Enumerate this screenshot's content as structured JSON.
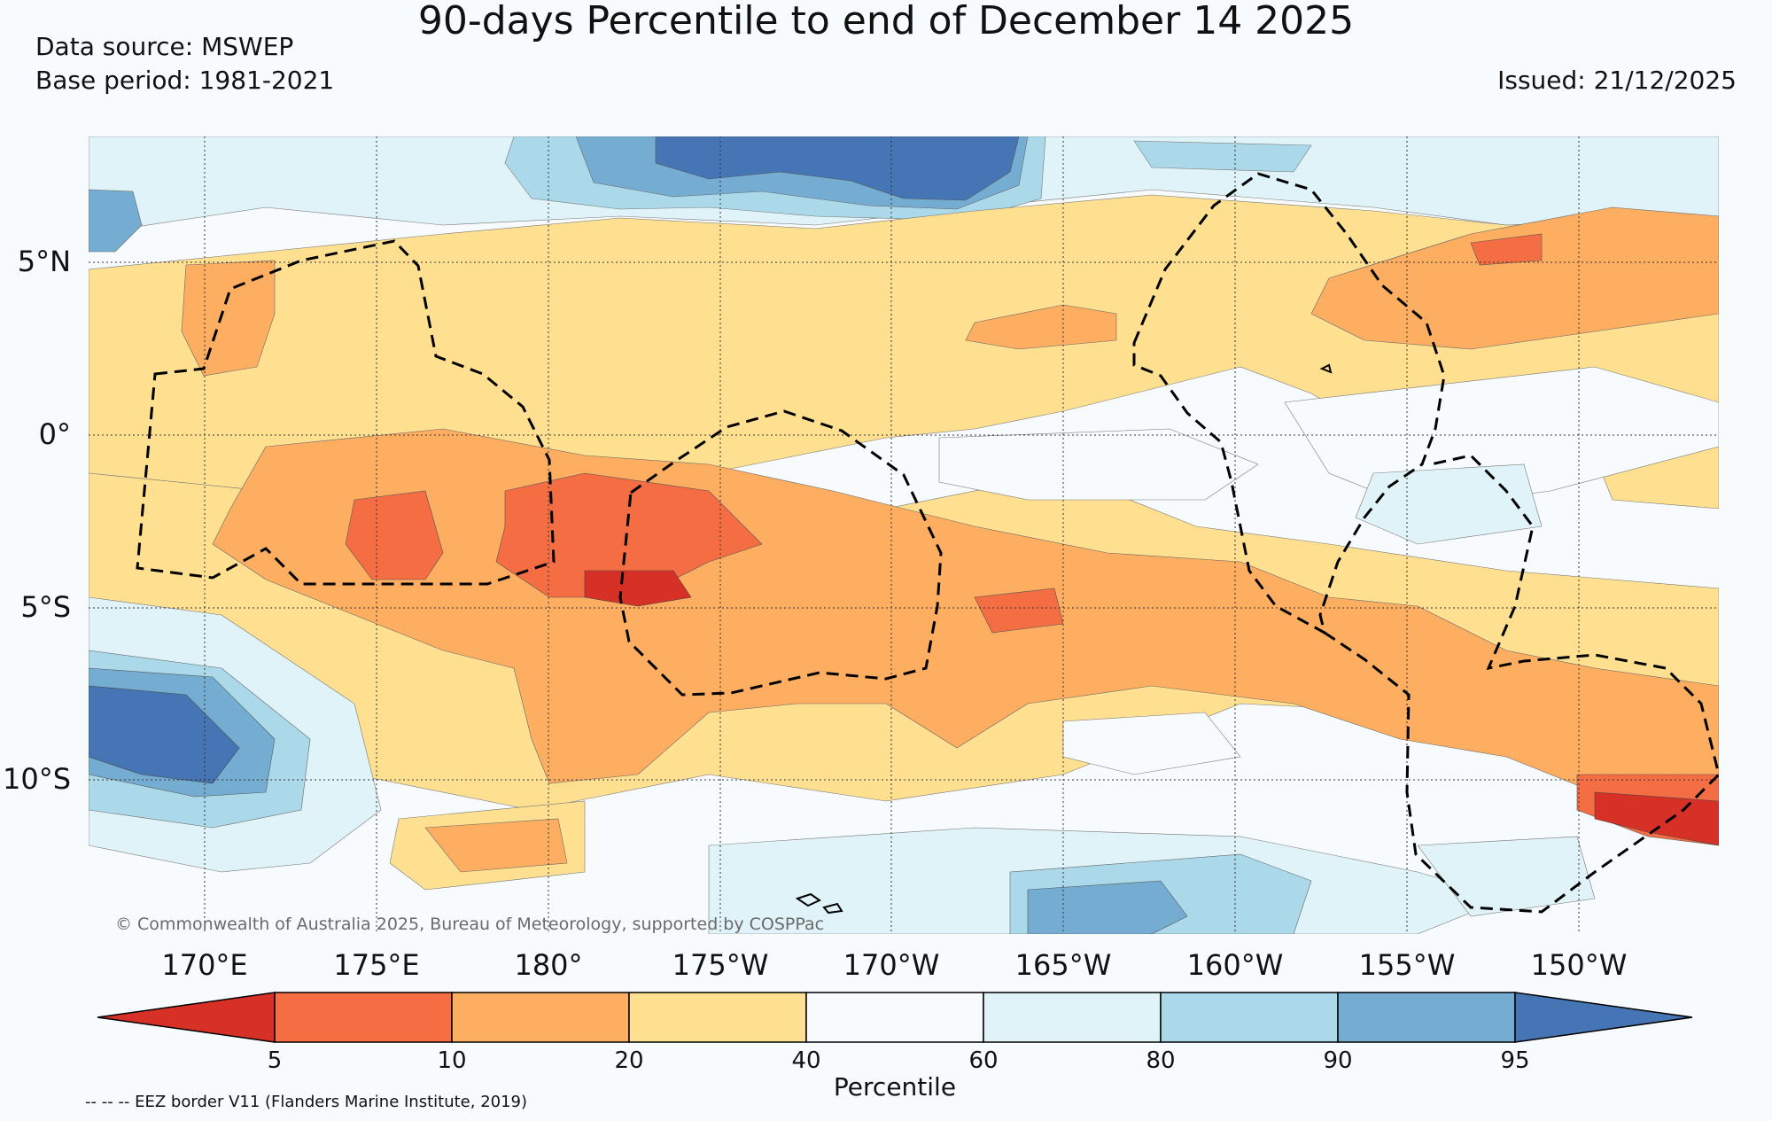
{
  "title": "90-days Percentile to end of December 14 2025",
  "data_source": "Data source: MSWEP",
  "base_period": "Base period: 1981-2021",
  "issued": "Issued: 21/12/2025",
  "copyright": "© Commonwealth of Australia 2025, Bureau of Meteorology, supported by COSPPac",
  "lat_labels": [
    "5°N",
    "0°",
    "5°S",
    "10°S"
  ],
  "lon_labels": [
    "170°E",
    "175°E",
    "180°",
    "175°W",
    "170°W",
    "165°W",
    "160°W",
    "155°W",
    "150°W"
  ],
  "colorbar": {
    "label": "Percentile",
    "ticks": [
      "5",
      "10",
      "20",
      "40",
      "60",
      "80",
      "90",
      "95"
    ],
    "colors": [
      "#d73027",
      "#f46d43",
      "#fdae61",
      "#fee090",
      "#f7fbfd",
      "#e0f3f8",
      "#abd9e9",
      "#74add1",
      "#4575b4"
    ]
  },
  "eez_note": "-- -- -- EEZ border V11 (Flanders Marine Institute, 2019)",
  "colors": {
    "red": "#d73027",
    "orange_red": "#f46d43",
    "orange": "#fdae61",
    "yellow": "#fee090",
    "white": "#f7fbfd",
    "pale_blue": "#e0f3f8",
    "light_blue": "#abd9e9",
    "mid_blue": "#74add1",
    "dark_blue": "#4575b4"
  }
}
